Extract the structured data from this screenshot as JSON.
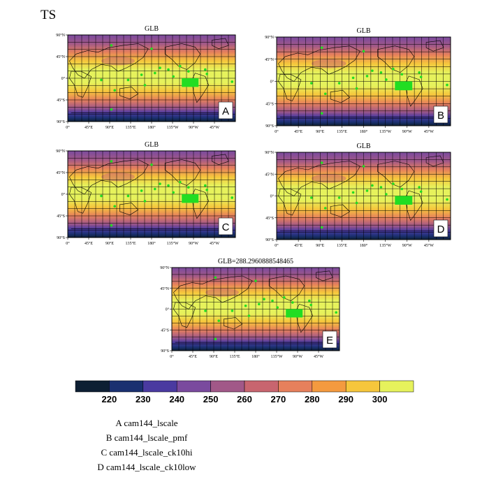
{
  "figure": {
    "title": "TS"
  },
  "chart_data": [
    {
      "type": "heatmap",
      "panel_title": "GLB",
      "panel_letter": "A",
      "lat_ticks": [
        "90°N",
        "45°N",
        "0°",
        "45°S",
        "90°S"
      ],
      "lon_ticks": [
        "0°",
        "45°E",
        "90°E",
        "135°E",
        "180°",
        "135°W",
        "90°W",
        "45°W"
      ],
      "grid": true
    },
    {
      "type": "heatmap",
      "panel_title": "GLB",
      "panel_letter": "B",
      "lat_ticks": [
        "90°N",
        "45°N",
        "0°",
        "45°S",
        "90°S"
      ],
      "lon_ticks": [
        "0°",
        "45°E",
        "90°E",
        "135°E",
        "180°",
        "135°W",
        "90°W",
        "45°W"
      ],
      "grid": true
    },
    {
      "type": "heatmap",
      "panel_title": "GLB",
      "panel_letter": "C",
      "lat_ticks": [
        "90°N",
        "45°N",
        "0°",
        "45°S",
        "90°S"
      ],
      "lon_ticks": [
        "0°",
        "45°E",
        "90°E",
        "135°E",
        "180°",
        "135°W",
        "90°W",
        "45°W"
      ],
      "grid": true
    },
    {
      "type": "heatmap",
      "panel_title": "GLB",
      "panel_letter": "D",
      "lat_ticks": [
        "90°N",
        "45°N",
        "0°",
        "45°S",
        "90°S"
      ],
      "lon_ticks": [
        "0°",
        "45°E",
        "90°E",
        "135°E",
        "180°",
        "135°W",
        "90°W",
        "45°W"
      ],
      "grid": true
    },
    {
      "type": "heatmap",
      "panel_title": "GLB=288.2960888548465",
      "panel_letter": "E",
      "lat_ticks": [
        "90°N",
        "45°N",
        "0°",
        "45°S",
        "90°S"
      ],
      "lon_ticks": [
        "0°",
        "45°E",
        "90°E",
        "135°E",
        "180°",
        "135°W",
        "90°W",
        "45°W"
      ],
      "grid": true
    }
  ],
  "colorbar": {
    "levels": [
      220,
      230,
      240,
      250,
      260,
      270,
      280,
      290,
      300
    ],
    "colors": [
      "#0d1f33",
      "#1a3070",
      "#4a3aa0",
      "#7a4a9e",
      "#a15888",
      "#c8656f",
      "#e6805c",
      "#f49a3f",
      "#f6c63c",
      "#e6f25c"
    ]
  },
  "legend": {
    "lines": [
      "A  cam144_lscale",
      "B  cam144_lscale_pmf",
      "C  cam144_lscale_ck10hi",
      "D  cam144_lscale_ck10low"
    ]
  }
}
